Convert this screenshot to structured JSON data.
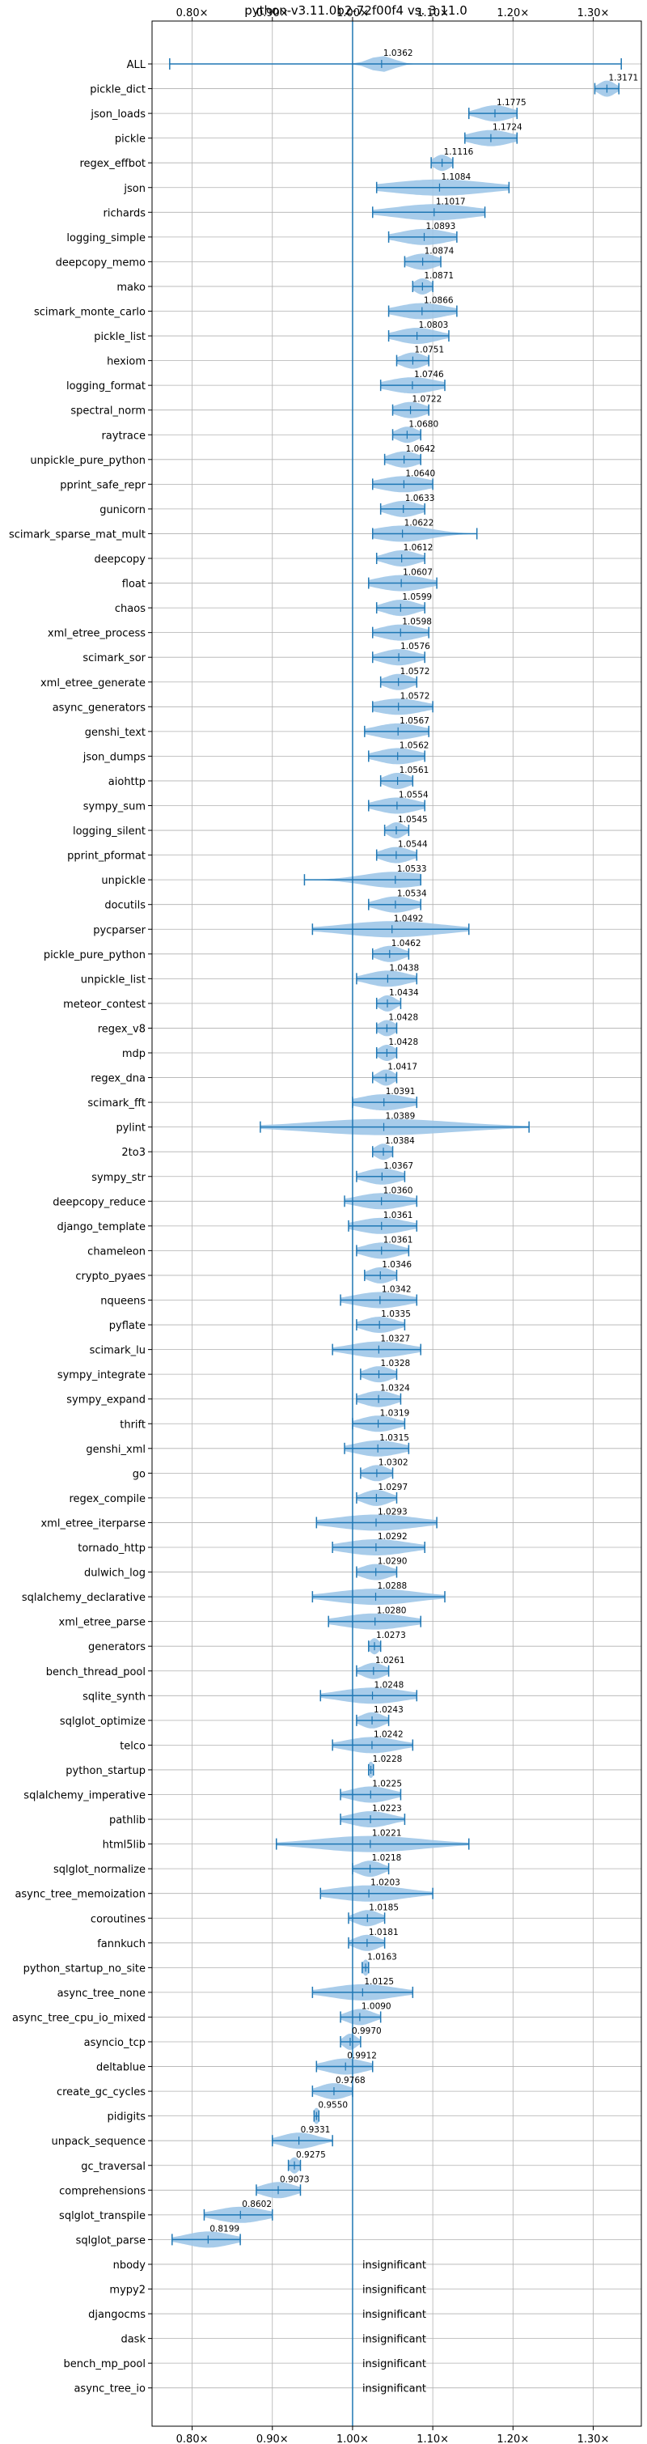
{
  "chart_data": {
    "type": "violin",
    "title": "python-v3.11.0b2-72f00f4 vs. 3.11.0",
    "xlabel": "",
    "ylabel": "",
    "xlim": [
      0.75,
      1.36
    ],
    "x_ticks": [
      0.8,
      0.9,
      1.0,
      1.1,
      1.2,
      1.3
    ],
    "x_tick_labels": [
      "0.80×",
      "0.90×",
      "1.00×",
      "1.10×",
      "1.20×",
      "1.30×"
    ],
    "reference_line": 1.0,
    "grid": true,
    "colors": {
      "violin": "#9ec7e8",
      "line": "#1f77b4",
      "grid": "#b0b0b0"
    },
    "benchmarks": [
      {
        "name": "ALL",
        "value": 1.0362,
        "min": 0.772,
        "max": 1.335,
        "spread": 0.015
      },
      {
        "name": "pickle_dict",
        "value": 1.3171,
        "min": 1.302,
        "max": 1.332,
        "spread": 0.01
      },
      {
        "name": "json_loads",
        "value": 1.1775,
        "min": 1.145,
        "max": 1.205,
        "spread": 0.02
      },
      {
        "name": "pickle",
        "value": 1.1724,
        "min": 1.14,
        "max": 1.205,
        "spread": 0.025
      },
      {
        "name": "regex_effbot",
        "value": 1.1116,
        "min": 1.098,
        "max": 1.125,
        "spread": 0.01
      },
      {
        "name": "json",
        "value": 1.1084,
        "min": 1.03,
        "max": 1.195,
        "spread": 0.06
      },
      {
        "name": "richards",
        "value": 1.1017,
        "min": 1.025,
        "max": 1.165,
        "spread": 0.05
      },
      {
        "name": "logging_simple",
        "value": 1.0893,
        "min": 1.045,
        "max": 1.13,
        "spread": 0.03
      },
      {
        "name": "deepcopy_memo",
        "value": 1.0874,
        "min": 1.065,
        "max": 1.11,
        "spread": 0.018
      },
      {
        "name": "mako",
        "value": 1.0871,
        "min": 1.075,
        "max": 1.1,
        "spread": 0.01
      },
      {
        "name": "scimark_monte_carlo",
        "value": 1.0866,
        "min": 1.045,
        "max": 1.13,
        "spread": 0.03
      },
      {
        "name": "pickle_list",
        "value": 1.0803,
        "min": 1.045,
        "max": 1.12,
        "spread": 0.025
      },
      {
        "name": "hexiom",
        "value": 1.0751,
        "min": 1.055,
        "max": 1.095,
        "spread": 0.015
      },
      {
        "name": "logging_format",
        "value": 1.0746,
        "min": 1.035,
        "max": 1.115,
        "spread": 0.03
      },
      {
        "name": "spectral_norm",
        "value": 1.0722,
        "min": 1.05,
        "max": 1.095,
        "spread": 0.018
      },
      {
        "name": "raytrace",
        "value": 1.068,
        "min": 1.05,
        "max": 1.085,
        "spread": 0.013
      },
      {
        "name": "unpickle_pure_python",
        "value": 1.0642,
        "min": 1.04,
        "max": 1.085,
        "spread": 0.018
      },
      {
        "name": "pprint_safe_repr",
        "value": 1.064,
        "min": 1.025,
        "max": 1.1,
        "spread": 0.03
      },
      {
        "name": "gunicorn",
        "value": 1.0633,
        "min": 1.035,
        "max": 1.09,
        "spread": 0.02
      },
      {
        "name": "scimark_sparse_mat_mult",
        "value": 1.0622,
        "min": 1.025,
        "max": 1.155,
        "spread": 0.035
      },
      {
        "name": "deepcopy",
        "value": 1.0612,
        "min": 1.03,
        "max": 1.09,
        "spread": 0.02
      },
      {
        "name": "float",
        "value": 1.0607,
        "min": 1.02,
        "max": 1.105,
        "spread": 0.03
      },
      {
        "name": "chaos",
        "value": 1.0599,
        "min": 1.03,
        "max": 1.09,
        "spread": 0.02
      },
      {
        "name": "xml_etree_process",
        "value": 1.0598,
        "min": 1.025,
        "max": 1.095,
        "spread": 0.025
      },
      {
        "name": "scimark_sor",
        "value": 1.0576,
        "min": 1.025,
        "max": 1.09,
        "spread": 0.022
      },
      {
        "name": "xml_etree_generate",
        "value": 1.0572,
        "min": 1.035,
        "max": 1.08,
        "spread": 0.016
      },
      {
        "name": "async_generators",
        "value": 1.0572,
        "min": 1.025,
        "max": 1.1,
        "spread": 0.03
      },
      {
        "name": "genshi_text",
        "value": 1.0567,
        "min": 1.015,
        "max": 1.095,
        "spread": 0.028
      },
      {
        "name": "json_dumps",
        "value": 1.0562,
        "min": 1.02,
        "max": 1.09,
        "spread": 0.025
      },
      {
        "name": "aiohttp",
        "value": 1.0561,
        "min": 1.035,
        "max": 1.075,
        "spread": 0.015
      },
      {
        "name": "sympy_sum",
        "value": 1.0554,
        "min": 1.02,
        "max": 1.09,
        "spread": 0.025
      },
      {
        "name": "logging_silent",
        "value": 1.0545,
        "min": 1.04,
        "max": 1.07,
        "spread": 0.01
      },
      {
        "name": "pprint_pformat",
        "value": 1.0544,
        "min": 1.03,
        "max": 1.08,
        "spread": 0.018
      },
      {
        "name": "unpickle",
        "value": 1.0533,
        "min": 0.94,
        "max": 1.085,
        "spread": 0.04
      },
      {
        "name": "docutils",
        "value": 1.0534,
        "min": 1.02,
        "max": 1.085,
        "spread": 0.022
      },
      {
        "name": "pycparser",
        "value": 1.0492,
        "min": 0.95,
        "max": 1.145,
        "spread": 0.06
      },
      {
        "name": "pickle_pure_python",
        "value": 1.0462,
        "min": 1.025,
        "max": 1.07,
        "spread": 0.016
      },
      {
        "name": "unpickle_list",
        "value": 1.0438,
        "min": 1.005,
        "max": 1.08,
        "spread": 0.025
      },
      {
        "name": "meteor_contest",
        "value": 1.0434,
        "min": 1.03,
        "max": 1.06,
        "spread": 0.01
      },
      {
        "name": "regex_v8",
        "value": 1.0428,
        "min": 1.03,
        "max": 1.055,
        "spread": 0.01
      },
      {
        "name": "mdp",
        "value": 1.0428,
        "min": 1.03,
        "max": 1.055,
        "spread": 0.01
      },
      {
        "name": "regex_dna",
        "value": 1.0417,
        "min": 1.025,
        "max": 1.055,
        "spread": 0.01
      },
      {
        "name": "scimark_fft",
        "value": 1.0391,
        "min": 1.0,
        "max": 1.08,
        "spread": 0.03
      },
      {
        "name": "pylint",
        "value": 1.0389,
        "min": 0.885,
        "max": 1.22,
        "spread": 0.09
      },
      {
        "name": "2to3",
        "value": 1.0384,
        "min": 1.025,
        "max": 1.05,
        "spread": 0.01
      },
      {
        "name": "sympy_str",
        "value": 1.0367,
        "min": 1.005,
        "max": 1.065,
        "spread": 0.022
      },
      {
        "name": "deepcopy_reduce",
        "value": 1.036,
        "min": 0.99,
        "max": 1.08,
        "spread": 0.03
      },
      {
        "name": "django_template",
        "value": 1.0361,
        "min": 0.995,
        "max": 1.08,
        "spread": 0.03
      },
      {
        "name": "chameleon",
        "value": 1.0361,
        "min": 1.005,
        "max": 1.07,
        "spread": 0.022
      },
      {
        "name": "crypto_pyaes",
        "value": 1.0346,
        "min": 1.015,
        "max": 1.055,
        "spread": 0.015
      },
      {
        "name": "nqueens",
        "value": 1.0342,
        "min": 0.985,
        "max": 1.08,
        "spread": 0.032
      },
      {
        "name": "pyflate",
        "value": 1.0335,
        "min": 1.005,
        "max": 1.065,
        "spread": 0.02
      },
      {
        "name": "scimark_lu",
        "value": 1.0327,
        "min": 0.975,
        "max": 1.085,
        "spread": 0.035
      },
      {
        "name": "sympy_integrate",
        "value": 1.0328,
        "min": 1.01,
        "max": 1.055,
        "spread": 0.016
      },
      {
        "name": "sympy_expand",
        "value": 1.0324,
        "min": 1.005,
        "max": 1.06,
        "spread": 0.02
      },
      {
        "name": "thrift",
        "value": 1.0319,
        "min": 1.0,
        "max": 1.065,
        "spread": 0.022
      },
      {
        "name": "genshi_xml",
        "value": 1.0315,
        "min": 0.99,
        "max": 1.07,
        "spread": 0.028
      },
      {
        "name": "go",
        "value": 1.0302,
        "min": 1.01,
        "max": 1.05,
        "spread": 0.014
      },
      {
        "name": "regex_compile",
        "value": 1.0297,
        "min": 1.005,
        "max": 1.055,
        "spread": 0.016
      },
      {
        "name": "xml_etree_iterparse",
        "value": 1.0293,
        "min": 0.955,
        "max": 1.105,
        "spread": 0.05
      },
      {
        "name": "tornado_http",
        "value": 1.0292,
        "min": 0.975,
        "max": 1.09,
        "spread": 0.04
      },
      {
        "name": "dulwich_log",
        "value": 1.029,
        "min": 1.005,
        "max": 1.055,
        "spread": 0.018
      },
      {
        "name": "sqlalchemy_declarative",
        "value": 1.0288,
        "min": 0.95,
        "max": 1.115,
        "spread": 0.05
      },
      {
        "name": "xml_etree_parse",
        "value": 1.028,
        "min": 0.97,
        "max": 1.085,
        "spread": 0.04
      },
      {
        "name": "generators",
        "value": 1.0273,
        "min": 1.02,
        "max": 1.035,
        "spread": 0.006
      },
      {
        "name": "bench_thread_pool",
        "value": 1.0261,
        "min": 1.005,
        "max": 1.045,
        "spread": 0.014
      },
      {
        "name": "sqlite_synth",
        "value": 1.0248,
        "min": 0.96,
        "max": 1.08,
        "spread": 0.04
      },
      {
        "name": "sqlglot_optimize",
        "value": 1.0243,
        "min": 1.005,
        "max": 1.045,
        "spread": 0.014
      },
      {
        "name": "telco",
        "value": 1.0242,
        "min": 0.975,
        "max": 1.075,
        "spread": 0.032
      },
      {
        "name": "python_startup",
        "value": 1.0228,
        "min": 1.02,
        "max": 1.026,
        "spread": 0.003
      },
      {
        "name": "sqlalchemy_imperative",
        "value": 1.0225,
        "min": 0.985,
        "max": 1.06,
        "spread": 0.025
      },
      {
        "name": "pathlib",
        "value": 1.0223,
        "min": 0.985,
        "max": 1.065,
        "spread": 0.025
      },
      {
        "name": "html5lib",
        "value": 1.0221,
        "min": 0.905,
        "max": 1.145,
        "spread": 0.065
      },
      {
        "name": "sqlglot_normalize",
        "value": 1.0218,
        "min": 1.0,
        "max": 1.045,
        "spread": 0.015
      },
      {
        "name": "async_tree_memoization",
        "value": 1.0203,
        "min": 0.96,
        "max": 1.1,
        "spread": 0.045
      },
      {
        "name": "coroutines",
        "value": 1.0185,
        "min": 0.995,
        "max": 1.04,
        "spread": 0.015
      },
      {
        "name": "fannkuch",
        "value": 1.0181,
        "min": 0.995,
        "max": 1.04,
        "spread": 0.015
      },
      {
        "name": "python_startup_no_site",
        "value": 1.0163,
        "min": 1.012,
        "max": 1.02,
        "spread": 0.004
      },
      {
        "name": "async_tree_none",
        "value": 1.0125,
        "min": 0.95,
        "max": 1.075,
        "spread": 0.04
      },
      {
        "name": "async_tree_cpu_io_mixed",
        "value": 1.009,
        "min": 0.985,
        "max": 1.035,
        "spread": 0.016
      },
      {
        "name": "asyncio_tcp",
        "value": 0.997,
        "min": 0.985,
        "max": 1.01,
        "spread": 0.008
      },
      {
        "name": "deltablue",
        "value": 0.9912,
        "min": 0.955,
        "max": 1.025,
        "spread": 0.025
      },
      {
        "name": "create_gc_cycles",
        "value": 0.9768,
        "min": 0.95,
        "max": 1.0,
        "spread": 0.018
      },
      {
        "name": "pidigits",
        "value": 0.955,
        "min": 0.952,
        "max": 0.958,
        "spread": 0.003
      },
      {
        "name": "unpack_sequence",
        "value": 0.9331,
        "min": 0.9,
        "max": 0.975,
        "spread": 0.022
      },
      {
        "name": "gc_traversal",
        "value": 0.9275,
        "min": 0.92,
        "max": 0.935,
        "spread": 0.006
      },
      {
        "name": "comprehensions",
        "value": 0.9073,
        "min": 0.88,
        "max": 0.935,
        "spread": 0.02
      },
      {
        "name": "sqlglot_transpile",
        "value": 0.8602,
        "min": 0.815,
        "max": 0.9,
        "spread": 0.03
      },
      {
        "name": "sqlglot_parse",
        "value": 0.8199,
        "min": 0.775,
        "max": 0.86,
        "spread": 0.028
      },
      {
        "name": "nbody",
        "insignificant": true
      },
      {
        "name": "mypy2",
        "insignificant": true
      },
      {
        "name": "djangocms",
        "insignificant": true
      },
      {
        "name": "dask",
        "insignificant": true
      },
      {
        "name": "bench_mp_pool",
        "insignificant": true
      },
      {
        "name": "async_tree_io",
        "insignificant": true
      }
    ],
    "insignificant_label": "insignificant"
  }
}
